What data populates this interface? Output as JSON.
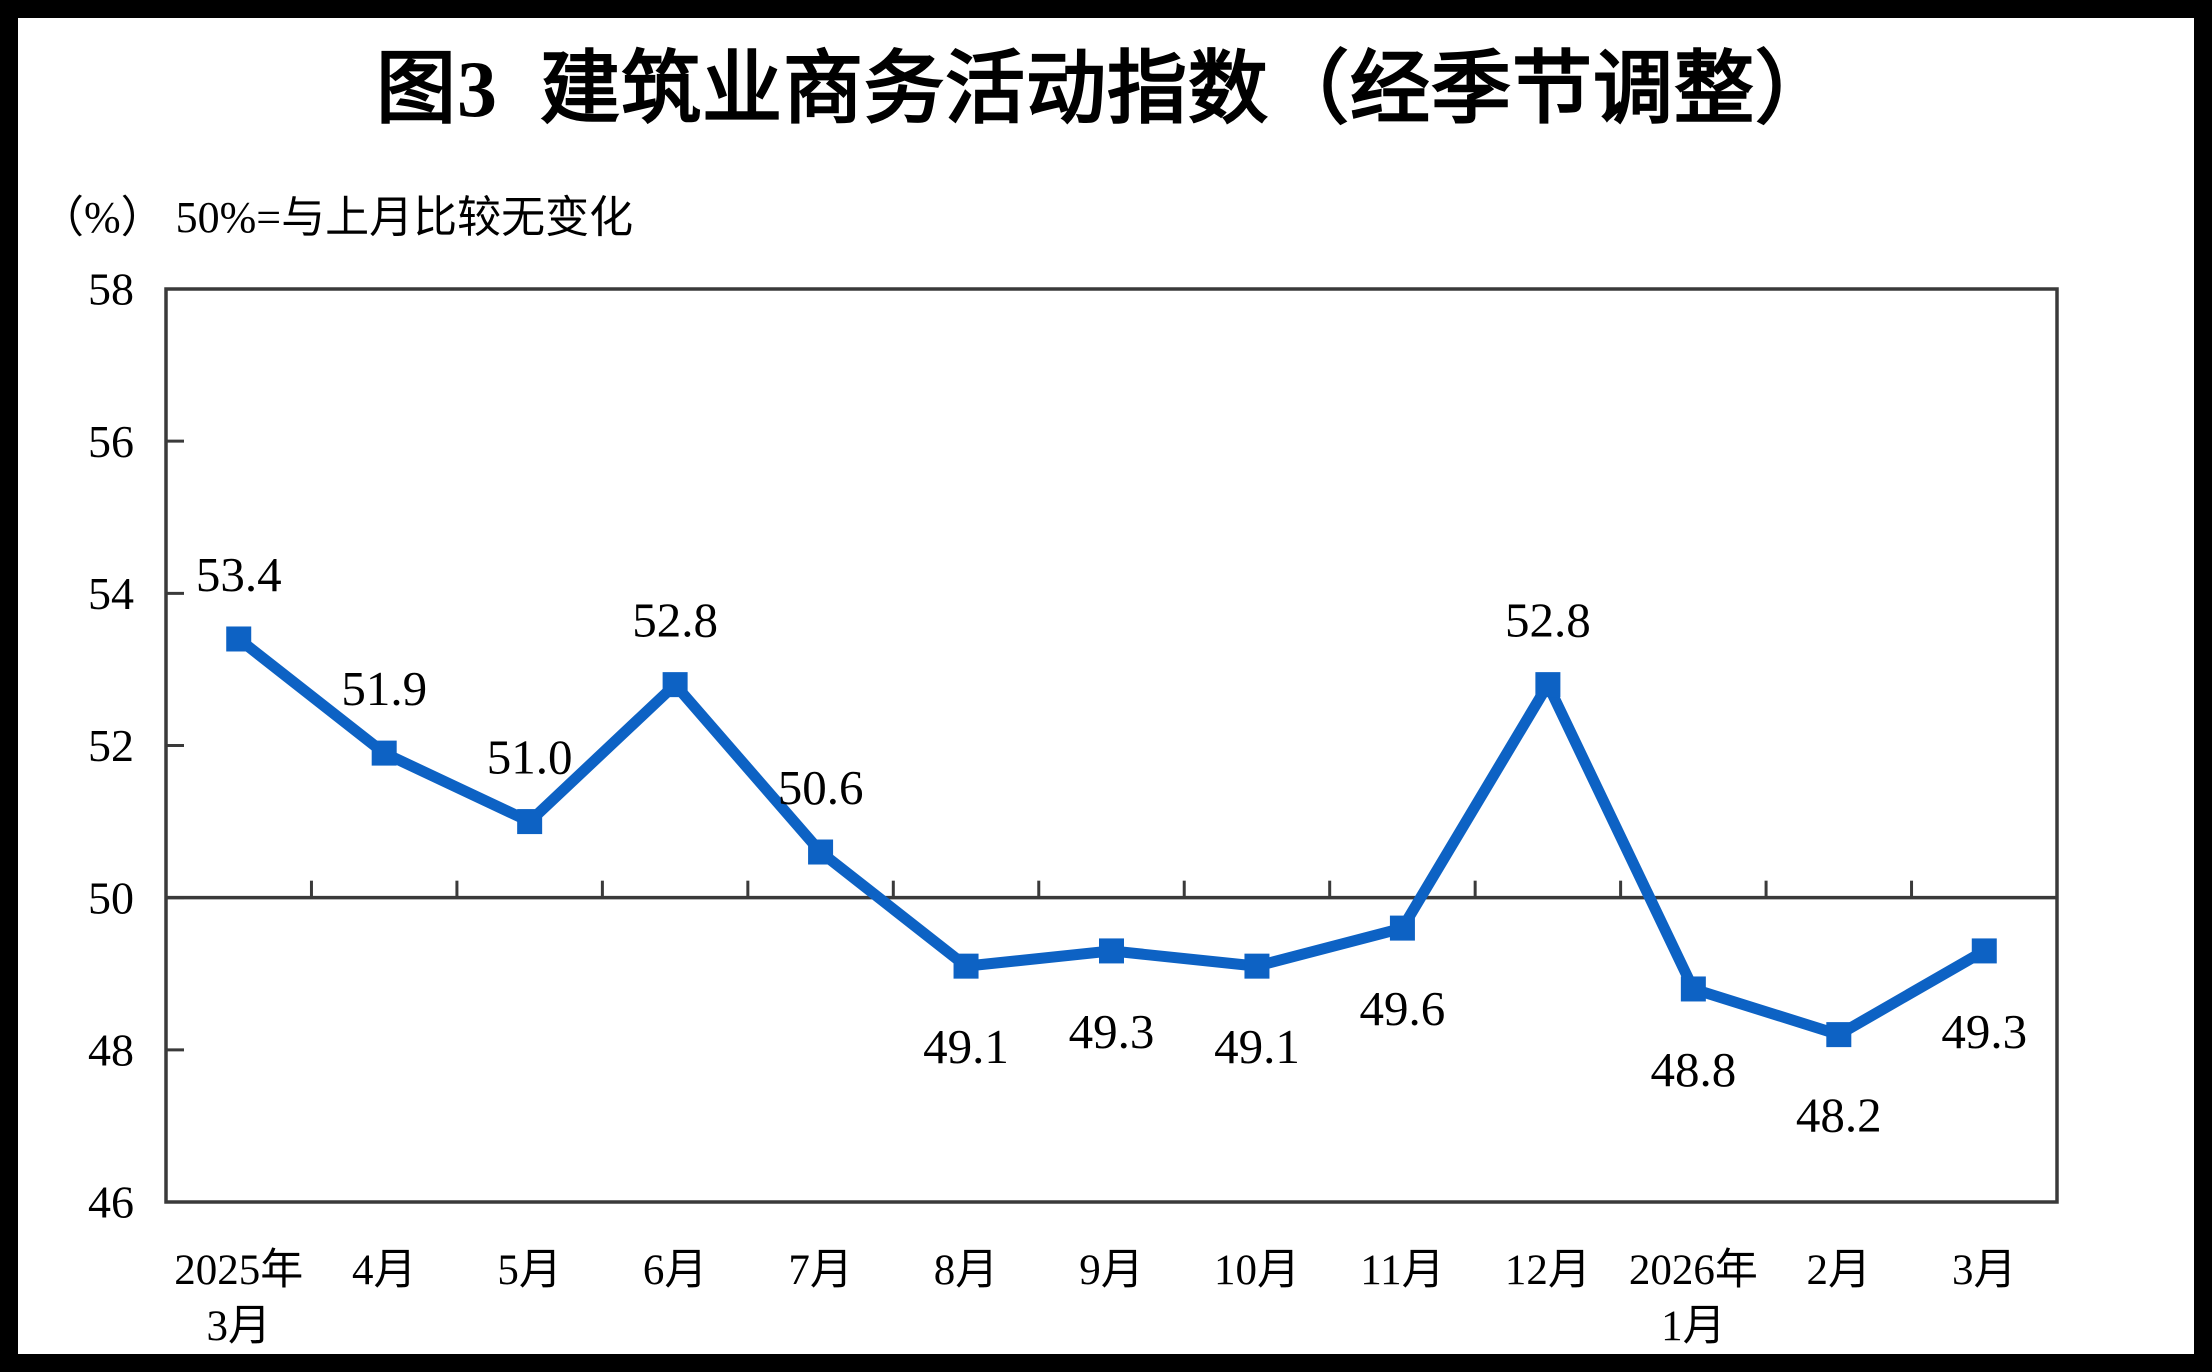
{
  "page": {
    "title": "图3  建筑业商务活动指数（经季节调整）",
    "unit_note": "（%） 50%=与上月比较无变化"
  },
  "chart_data": {
    "type": "line",
    "title": "图3 建筑业商务活动指数（经季节调整）",
    "unit_note": "（%）50%=与上月比较无变化",
    "series_name": "建筑业商务活动指数",
    "categories": [
      "2025年\n3月",
      "4月",
      "5月",
      "6月",
      "7月",
      "8月",
      "9月",
      "10月",
      "11月",
      "12月",
      "2026年\n1月",
      "2月",
      "3月"
    ],
    "values": [
      53.4,
      51.9,
      51.0,
      52.8,
      50.6,
      49.1,
      49.3,
      49.1,
      49.6,
      52.8,
      48.8,
      48.2,
      49.3
    ],
    "value_labels": [
      "53.4",
      "51.9",
      "51.0",
      "52.8",
      "50.6",
      "49.1",
      "49.3",
      "49.1",
      "49.6",
      "52.8",
      "48.8",
      "48.2",
      "49.3"
    ],
    "ylim": [
      46,
      58
    ],
    "yticks": [
      58,
      56,
      54,
      52,
      50,
      48,
      46
    ],
    "reference_line_value": 50,
    "grid": "off",
    "legend": "none",
    "marker": "square",
    "colors": {
      "line": "#0d62c4",
      "axis": "#3a3a3a",
      "text": "#000000",
      "frame": "#000000",
      "background": "#ffffff"
    }
  }
}
